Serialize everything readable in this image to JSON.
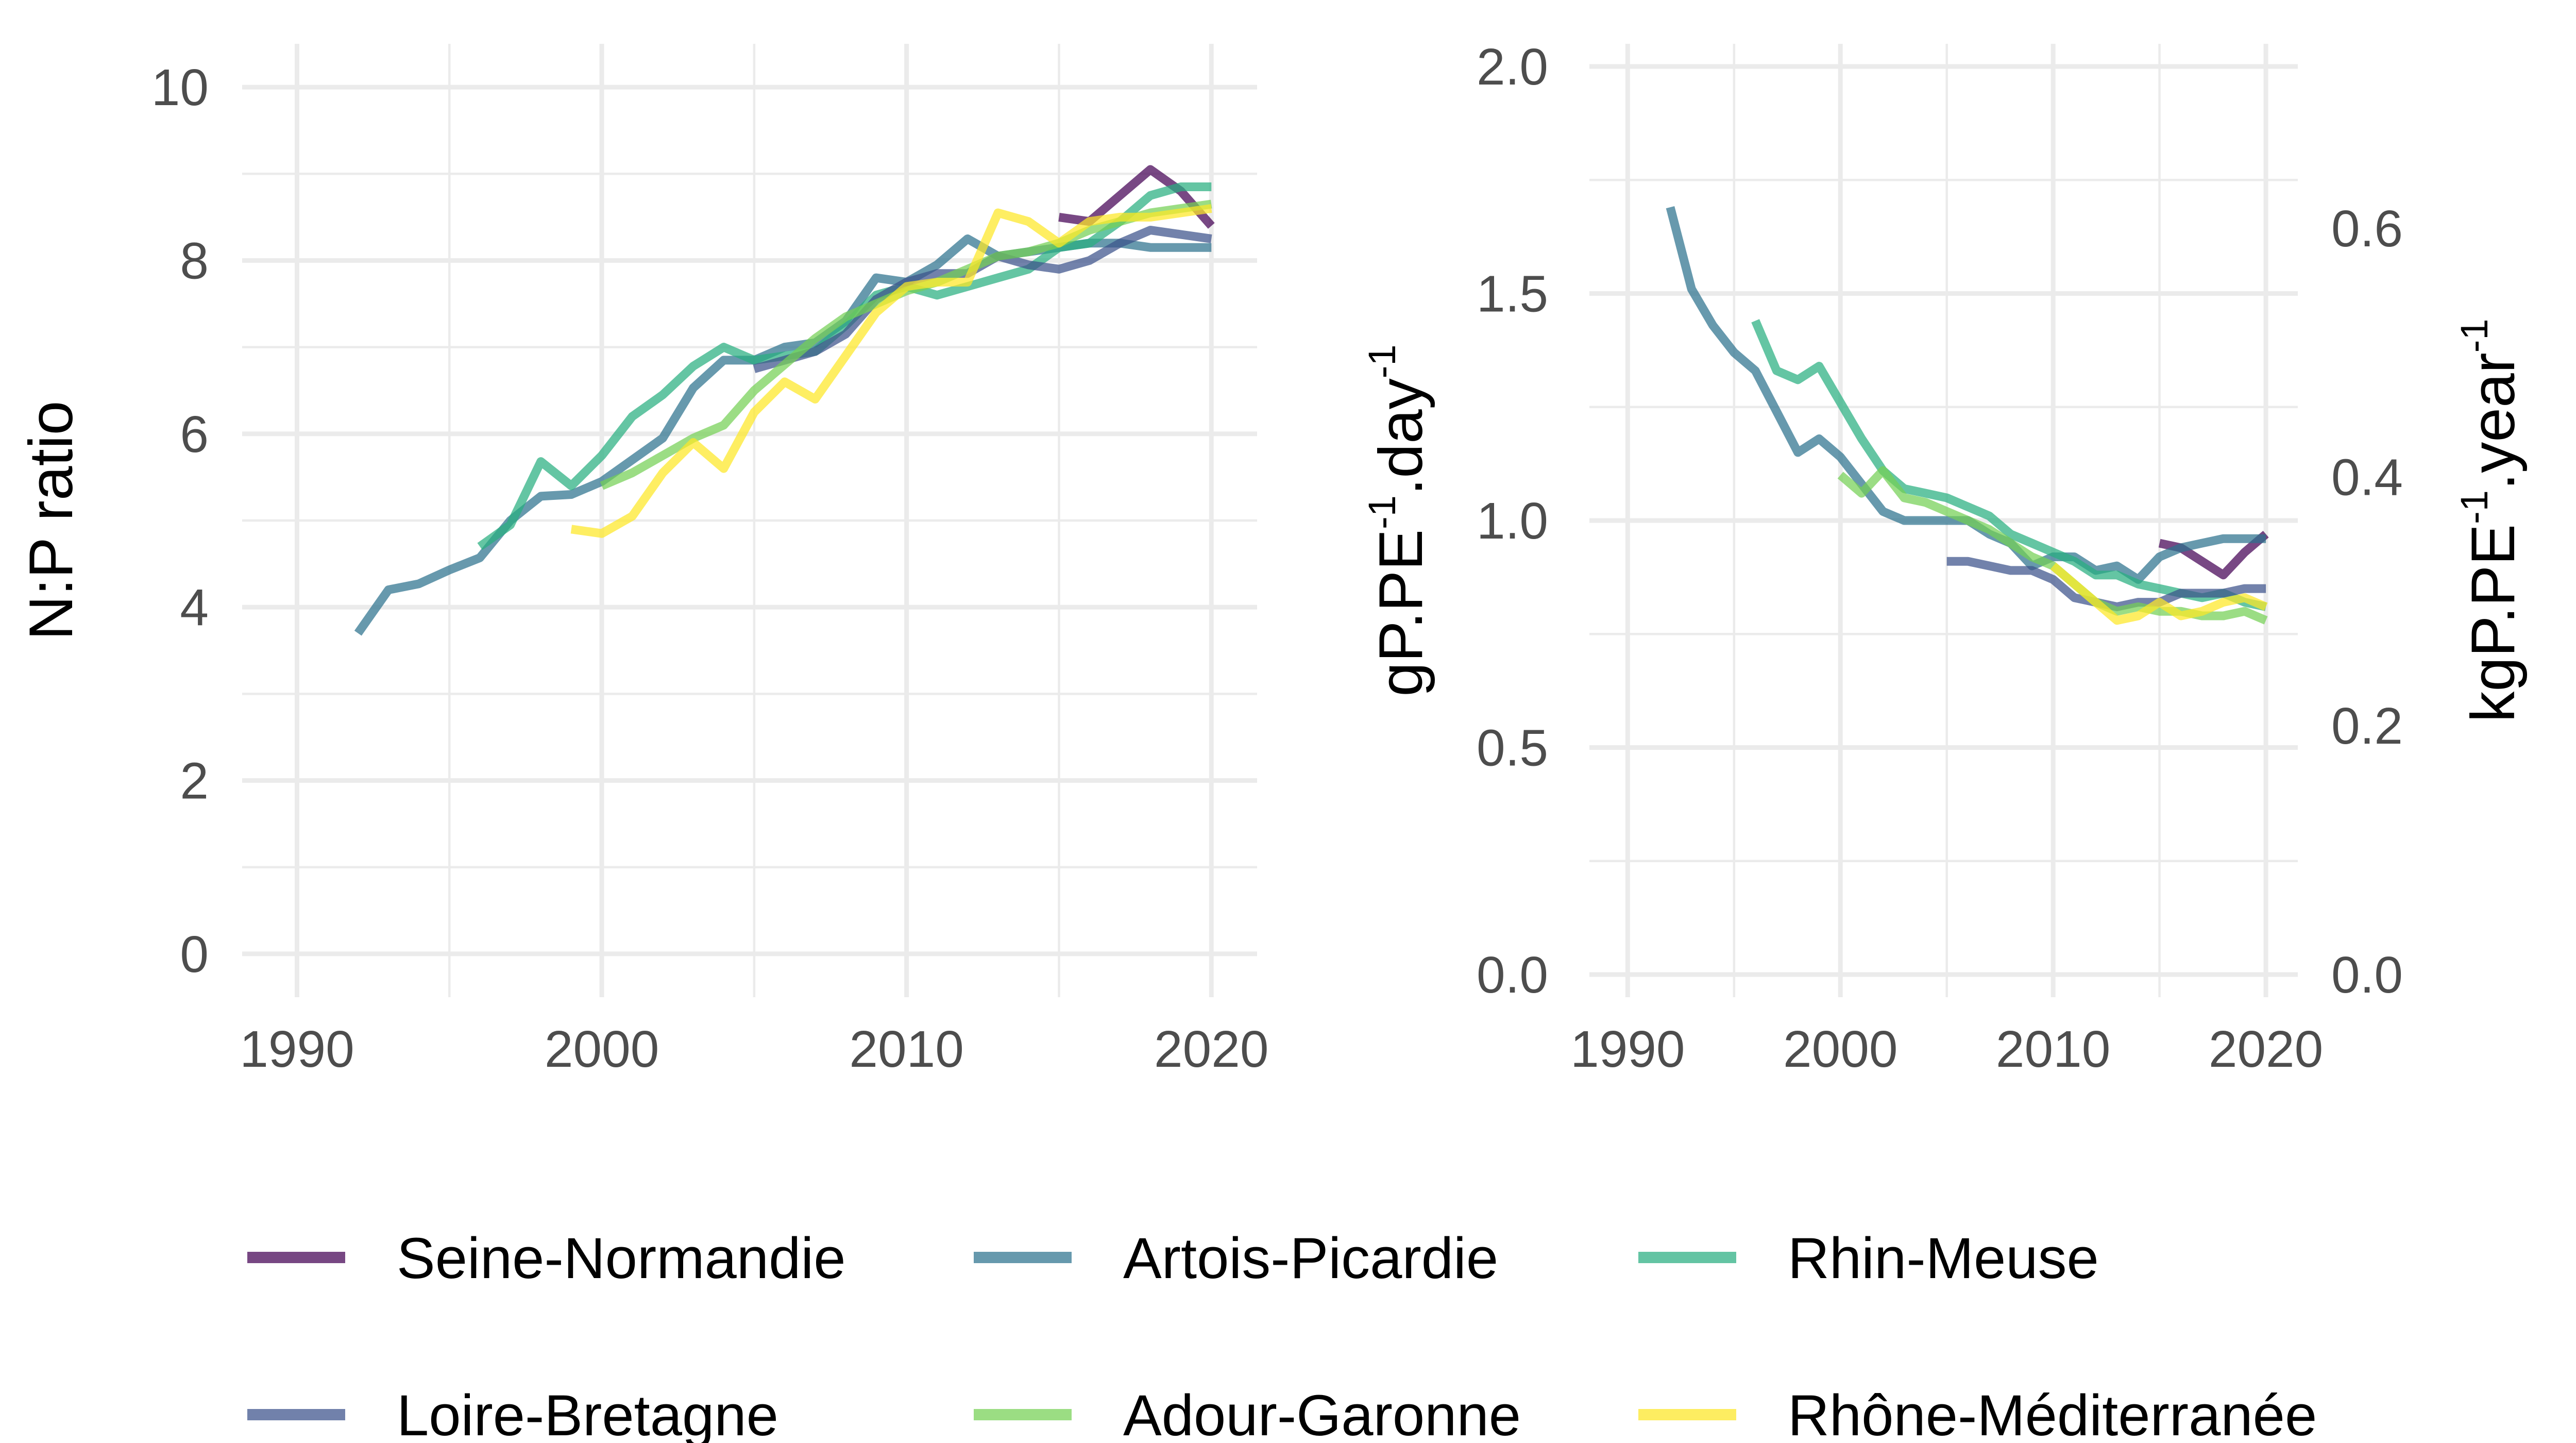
{
  "legend": {
    "placement": "bottom",
    "columns": 3
  },
  "series_styles": [
    {
      "name": "Seine-Normandie",
      "color": "#440154"
    },
    {
      "name": "Artois-Picardie",
      "color": "#2c728e"
    },
    {
      "name": "Rhin-Meuse",
      "color": "#28ae80"
    },
    {
      "name": "Loire-Bretagne",
      "color": "#3b528b"
    },
    {
      "name": "Adour-Garonne",
      "color": "#75d054"
    },
    {
      "name": "Rhône-Méditerranée",
      "color": "#fde725"
    }
  ],
  "chart_data": [
    {
      "type": "line",
      "title": "",
      "ylabel": "N:P ratio",
      "xlabel": "",
      "xlim": [
        1988.2,
        2021.5
      ],
      "ylim": [
        -0.5,
        10.5
      ],
      "x_ticks": [
        1990,
        2000,
        2010,
        2020
      ],
      "y_ticks": [
        0,
        2,
        4,
        6,
        8,
        10
      ],
      "grid": true,
      "series": [
        {
          "name": "Seine-Normandie",
          "x": [
            2015,
            2016,
            2017,
            2018,
            2019,
            2020
          ],
          "values": [
            8.5,
            8.45,
            8.75,
            9.05,
            8.8,
            8.4
          ]
        },
        {
          "name": "Artois-Picardie",
          "x": [
            1992,
            1993,
            1994,
            1995,
            1996,
            1997,
            1998,
            1999,
            2000,
            2001,
            2002,
            2003,
            2004,
            2005,
            2006,
            2007,
            2008,
            2009,
            2010,
            2011,
            2012,
            2013,
            2014,
            2015,
            2016,
            2017,
            2018,
            2019,
            2020
          ],
          "values": [
            3.7,
            4.2,
            4.27,
            4.43,
            4.57,
            5.0,
            5.28,
            5.3,
            5.45,
            5.7,
            5.95,
            6.53,
            6.85,
            6.85,
            7.0,
            7.05,
            7.3,
            7.8,
            7.75,
            7.95,
            8.25,
            8.05,
            8.1,
            8.15,
            8.2,
            8.2,
            8.15,
            8.15,
            8.15
          ]
        },
        {
          "name": "Rhin-Meuse",
          "x": [
            1996,
            1997,
            1998,
            1999,
            2000,
            2001,
            2002,
            2003,
            2004,
            2005,
            2006,
            2007,
            2008,
            2009,
            2010,
            2011,
            2012,
            2013,
            2014,
            2015,
            2016,
            2017,
            2018,
            2019,
            2020
          ],
          "values": [
            4.7,
            4.95,
            5.68,
            5.4,
            5.75,
            6.2,
            6.45,
            6.78,
            7.0,
            6.85,
            6.9,
            6.95,
            7.25,
            7.6,
            7.7,
            7.6,
            7.7,
            7.8,
            7.9,
            8.15,
            8.2,
            8.45,
            8.75,
            8.85,
            8.85
          ]
        },
        {
          "name": "Loire-Bretagne",
          "x": [
            2005,
            2006,
            2007,
            2008,
            2009,
            2010,
            2011,
            2012,
            2013,
            2014,
            2015,
            2016,
            2017,
            2018,
            2019,
            2020
          ],
          "values": [
            6.75,
            6.85,
            6.95,
            7.15,
            7.55,
            7.75,
            7.85,
            7.85,
            8.05,
            7.95,
            7.9,
            8.0,
            8.2,
            8.35,
            8.3,
            8.25
          ]
        },
        {
          "name": "Adour-Garonne",
          "x": [
            2000,
            2001,
            2002,
            2003,
            2004,
            2005,
            2006,
            2007,
            2008,
            2009,
            2010,
            2011,
            2012,
            2013,
            2014,
            2015,
            2016,
            2017,
            2018,
            2019,
            2020
          ],
          "values": [
            5.4,
            5.55,
            5.75,
            5.95,
            6.1,
            6.5,
            6.8,
            7.1,
            7.35,
            7.5,
            7.65,
            7.75,
            7.9,
            8.05,
            8.1,
            8.2,
            8.35,
            8.45,
            8.55,
            8.6,
            8.65
          ]
        },
        {
          "name": "Rhône-Méditerranée",
          "x": [
            1999,
            2000,
            2001,
            2002,
            2003,
            2004,
            2005,
            2006,
            2007,
            2008,
            2009,
            2010,
            2011,
            2012,
            2013,
            2014,
            2015,
            2016,
            2017,
            2018,
            2019,
            2020
          ],
          "values": [
            4.9,
            4.85,
            5.05,
            5.55,
            5.9,
            5.6,
            6.25,
            6.6,
            6.4,
            6.9,
            7.4,
            7.7,
            7.75,
            7.75,
            8.55,
            8.45,
            8.2,
            8.45,
            8.5,
            8.5,
            8.55,
            8.6
          ]
        }
      ]
    },
    {
      "type": "line",
      "title": "",
      "ylabel": "gP.PE-1.day-1",
      "ylabel_parts": [
        "gP.PE",
        "-1",
        ".day",
        "-1"
      ],
      "y2label": "kgP.PE-1.year-1",
      "y2label_parts": [
        "kgP.PE",
        "-1",
        ".year",
        "-1"
      ],
      "xlabel": "",
      "xlim": [
        1988.2,
        2021.5
      ],
      "ylim": [
        -0.05,
        2.05
      ],
      "x_ticks": [
        1990,
        2000,
        2010,
        2020
      ],
      "y_ticks": [
        0.0,
        0.5,
        1.0,
        1.5,
        2.0
      ],
      "y_tick_labels": [
        "0.0",
        "0.5",
        "1.0",
        "1.5",
        "2.0"
      ],
      "y2_ticks": [
        0.0,
        0.2,
        0.4,
        0.6
      ],
      "y2_tick_labels": [
        "0.0",
        "0.2",
        "0.4",
        "0.6"
      ],
      "grid": true,
      "series": [
        {
          "name": "Seine-Normandie",
          "x": [
            2015,
            2016,
            2017,
            2018,
            2019,
            2020
          ],
          "values": [
            0.95,
            0.94,
            0.91,
            0.88,
            0.93,
            0.97
          ]
        },
        {
          "name": "Artois-Picardie",
          "x": [
            1992,
            1993,
            1994,
            1995,
            1996,
            1997,
            1998,
            1999,
            2000,
            2001,
            2002,
            2003,
            2004,
            2005,
            2006,
            2007,
            2008,
            2009,
            2010,
            2011,
            2012,
            2013,
            2014,
            2015,
            2016,
            2017,
            2018,
            2019,
            2020
          ],
          "values": [
            1.69,
            1.51,
            1.43,
            1.37,
            1.33,
            1.24,
            1.15,
            1.18,
            1.14,
            1.08,
            1.02,
            1.0,
            1.0,
            1.0,
            1.0,
            0.97,
            0.95,
            0.9,
            0.92,
            0.92,
            0.89,
            0.9,
            0.87,
            0.92,
            0.94,
            0.95,
            0.96,
            0.96,
            0.96
          ]
        },
        {
          "name": "Rhin-Meuse",
          "x": [
            1996,
            1997,
            1998,
            1999,
            2000,
            2001,
            2002,
            2003,
            2004,
            2005,
            2006,
            2007,
            2008,
            2009,
            2010,
            2011,
            2012,
            2013,
            2014,
            2015,
            2016,
            2017,
            2018,
            2019,
            2020
          ],
          "values": [
            1.44,
            1.33,
            1.31,
            1.34,
            1.26,
            1.18,
            1.11,
            1.07,
            1.06,
            1.05,
            1.03,
            1.01,
            0.97,
            0.95,
            0.93,
            0.91,
            0.88,
            0.88,
            0.86,
            0.85,
            0.84,
            0.83,
            0.84,
            0.82,
            0.81
          ]
        },
        {
          "name": "Loire-Bretagne",
          "x": [
            2005,
            2006,
            2007,
            2008,
            2009,
            2010,
            2011,
            2012,
            2013,
            2014,
            2015,
            2016,
            2017,
            2018,
            2019,
            2020
          ],
          "values": [
            0.91,
            0.91,
            0.9,
            0.89,
            0.89,
            0.87,
            0.83,
            0.82,
            0.81,
            0.82,
            0.82,
            0.84,
            0.84,
            0.84,
            0.85,
            0.85
          ]
        },
        {
          "name": "Adour-Garonne",
          "x": [
            2000,
            2001,
            2002,
            2003,
            2004,
            2005,
            2006,
            2007,
            2008,
            2009,
            2010,
            2011,
            2012,
            2013,
            2014,
            2015,
            2016,
            2017,
            2018,
            2019,
            2020
          ],
          "values": [
            1.1,
            1.06,
            1.11,
            1.05,
            1.04,
            1.02,
            1.0,
            0.98,
            0.95,
            0.92,
            0.9,
            0.86,
            0.82,
            0.8,
            0.81,
            0.8,
            0.8,
            0.79,
            0.79,
            0.8,
            0.78
          ]
        },
        {
          "name": "Rhône-Méditerranée",
          "x": [
            2010,
            2011,
            2012,
            2013,
            2014,
            2015,
            2016,
            2017,
            2018,
            2019,
            2020
          ],
          "values": [
            0.9,
            0.86,
            0.82,
            0.78,
            0.79,
            0.82,
            0.79,
            0.8,
            0.82,
            0.83,
            0.81
          ]
        }
      ]
    }
  ]
}
